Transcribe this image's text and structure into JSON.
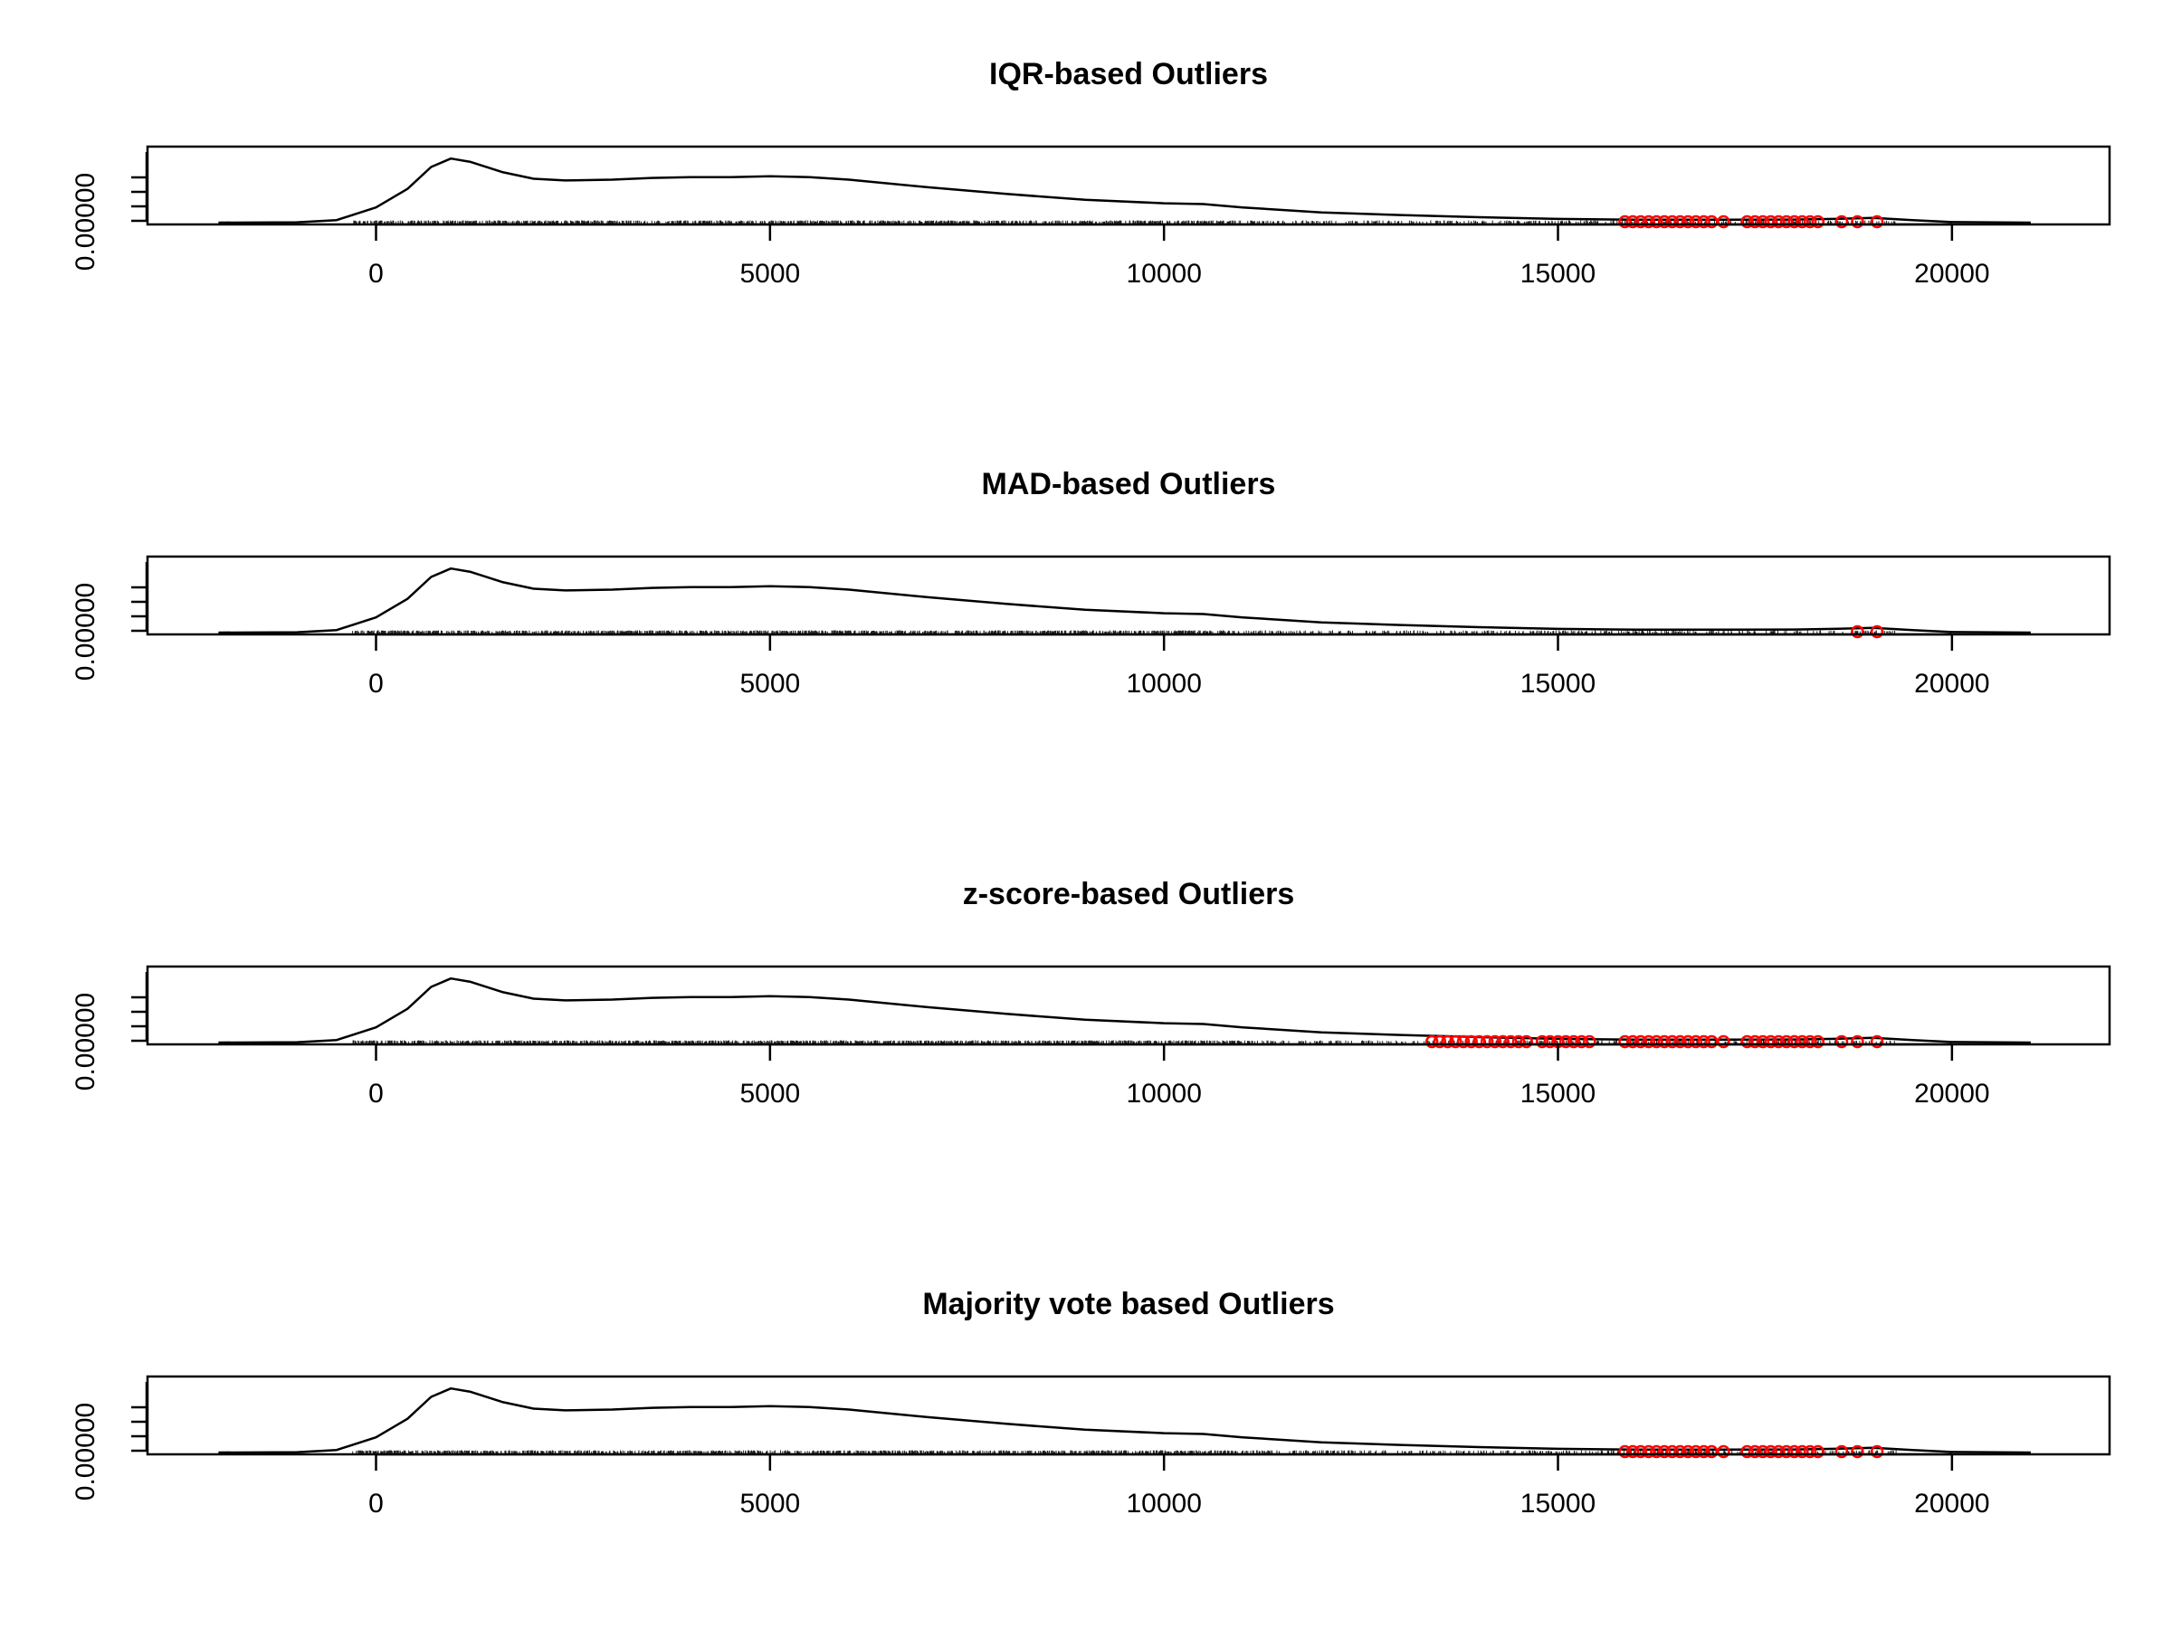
{
  "chart_data": [
    {
      "type": "line",
      "title": "IQR-based Outliers",
      "xlabel": "",
      "ylabel": "",
      "x_ticks": [
        "0",
        "5000",
        "10000",
        "15000",
        "20000"
      ],
      "y_tick_label": "0.00000",
      "xlim": [
        -2900,
        22000
      ],
      "grid": false,
      "outlier_color": "#ff0000",
      "series": [
        {
          "x": [
            -2000,
            -1000,
            -500,
            0,
            400,
            700,
            950,
            1200,
            1600,
            2000,
            2400,
            3000,
            3500,
            4000,
            4500,
            5000,
            5500,
            6000,
            7000,
            8000,
            9000,
            10000,
            10500,
            11000,
            12000,
            13000,
            14000,
            15000,
            16000,
            17000,
            18000,
            18500,
            19000,
            19500,
            20000,
            21000
          ],
          "y": [
            0.0,
            0.2,
            1.5,
            9.0,
            20.0,
            33.0,
            38.0,
            36.0,
            30.0,
            26.0,
            25.0,
            25.5,
            26.5,
            27.0,
            27.0,
            27.5,
            27.0,
            25.5,
            21.0,
            17.0,
            13.5,
            11.5,
            11.0,
            9.0,
            6.0,
            4.5,
            3.2,
            2.2,
            1.7,
            1.7,
            1.8,
            2.2,
            2.8,
            1.5,
            0.3,
            0.0
          ]
        }
      ],
      "outliers": [
        15850,
        15950,
        16050,
        16150,
        16250,
        16350,
        16450,
        16550,
        16650,
        16750,
        16850,
        16950,
        17100,
        17400,
        17500,
        17600,
        17700,
        17800,
        17900,
        18000,
        18100,
        18200,
        18300,
        18600,
        18800,
        19050
      ]
    },
    {
      "type": "line",
      "title": "MAD-based Outliers",
      "xlabel": "",
      "ylabel": "",
      "x_ticks": [
        "0",
        "5000",
        "10000",
        "15000",
        "20000"
      ],
      "y_tick_label": "0.00000",
      "xlim": [
        -2900,
        22000
      ],
      "grid": false,
      "outlier_color": "#ff0000",
      "series": [
        {
          "x": [
            -2000,
            -1000,
            -500,
            0,
            400,
            700,
            950,
            1200,
            1600,
            2000,
            2400,
            3000,
            3500,
            4000,
            4500,
            5000,
            5500,
            6000,
            7000,
            8000,
            9000,
            10000,
            10500,
            11000,
            12000,
            13000,
            14000,
            15000,
            16000,
            17000,
            18000,
            18500,
            19000,
            19500,
            20000,
            21000
          ],
          "y": [
            0.0,
            0.2,
            1.5,
            9.0,
            20.0,
            33.0,
            38.0,
            36.0,
            30.0,
            26.0,
            25.0,
            25.5,
            26.5,
            27.0,
            27.0,
            27.5,
            27.0,
            25.5,
            21.0,
            17.0,
            13.5,
            11.5,
            11.0,
            9.0,
            6.0,
            4.5,
            3.2,
            2.2,
            1.7,
            1.7,
            1.8,
            2.2,
            2.8,
            1.5,
            0.3,
            0.0
          ]
        }
      ],
      "outliers": [
        18800,
        19050
      ]
    },
    {
      "type": "line",
      "title": "z-score-based Outliers",
      "xlabel": "",
      "ylabel": "",
      "x_ticks": [
        "0",
        "5000",
        "10000",
        "15000",
        "20000"
      ],
      "y_tick_label": "0.00000",
      "xlim": [
        -2900,
        22000
      ],
      "grid": false,
      "outlier_color": "#ff0000",
      "series": [
        {
          "x": [
            -2000,
            -1000,
            -500,
            0,
            400,
            700,
            950,
            1200,
            1600,
            2000,
            2400,
            3000,
            3500,
            4000,
            4500,
            5000,
            5500,
            6000,
            7000,
            8000,
            9000,
            10000,
            10500,
            11000,
            12000,
            13000,
            14000,
            15000,
            16000,
            17000,
            18000,
            18500,
            19000,
            19500,
            20000,
            21000
          ],
          "y": [
            0.0,
            0.2,
            1.5,
            9.0,
            20.0,
            33.0,
            38.0,
            36.0,
            30.0,
            26.0,
            25.0,
            25.5,
            26.5,
            27.0,
            27.0,
            27.5,
            27.0,
            25.5,
            21.0,
            17.0,
            13.5,
            11.5,
            11.0,
            9.0,
            6.0,
            4.5,
            3.2,
            2.2,
            1.7,
            1.7,
            1.8,
            2.2,
            2.8,
            1.5,
            0.3,
            0.0
          ]
        }
      ],
      "outliers": [
        13400,
        13500,
        13600,
        13700,
        13800,
        13900,
        14000,
        14100,
        14200,
        14300,
        14400,
        14500,
        14600,
        14800,
        14900,
        15000,
        15100,
        15200,
        15300,
        15400,
        15850,
        15950,
        16050,
        16150,
        16250,
        16350,
        16450,
        16550,
        16650,
        16750,
        16850,
        16950,
        17100,
        17400,
        17500,
        17600,
        17700,
        17800,
        17900,
        18000,
        18100,
        18200,
        18300,
        18600,
        18800,
        19050
      ]
    },
    {
      "type": "line",
      "title": "Majority vote based Outliers",
      "xlabel": "",
      "ylabel": "",
      "x_ticks": [
        "0",
        "5000",
        "10000",
        "15000",
        "20000"
      ],
      "y_tick_label": "0.00000",
      "xlim": [
        -2900,
        22000
      ],
      "grid": false,
      "outlier_color": "#ff0000",
      "series": [
        {
          "x": [
            -2000,
            -1000,
            -500,
            0,
            400,
            700,
            950,
            1200,
            1600,
            2000,
            2400,
            3000,
            3500,
            4000,
            4500,
            5000,
            5500,
            6000,
            7000,
            8000,
            9000,
            10000,
            10500,
            11000,
            12000,
            13000,
            14000,
            15000,
            16000,
            17000,
            18000,
            18500,
            19000,
            19500,
            20000,
            21000
          ],
          "y": [
            0.0,
            0.2,
            1.5,
            9.0,
            20.0,
            33.0,
            38.0,
            36.0,
            30.0,
            26.0,
            25.0,
            25.5,
            26.5,
            27.0,
            27.0,
            27.5,
            27.0,
            25.5,
            21.0,
            17.0,
            13.5,
            11.5,
            11.0,
            9.0,
            6.0,
            4.5,
            3.2,
            2.2,
            1.7,
            1.7,
            1.8,
            2.2,
            2.8,
            1.5,
            0.3,
            0.0
          ]
        }
      ],
      "outliers": [
        15850,
        15950,
        16050,
        16150,
        16250,
        16350,
        16450,
        16550,
        16650,
        16750,
        16850,
        16950,
        17100,
        17400,
        17500,
        17600,
        17700,
        17800,
        17900,
        18000,
        18100,
        18200,
        18300,
        18600,
        18800,
        19050
      ]
    }
  ]
}
